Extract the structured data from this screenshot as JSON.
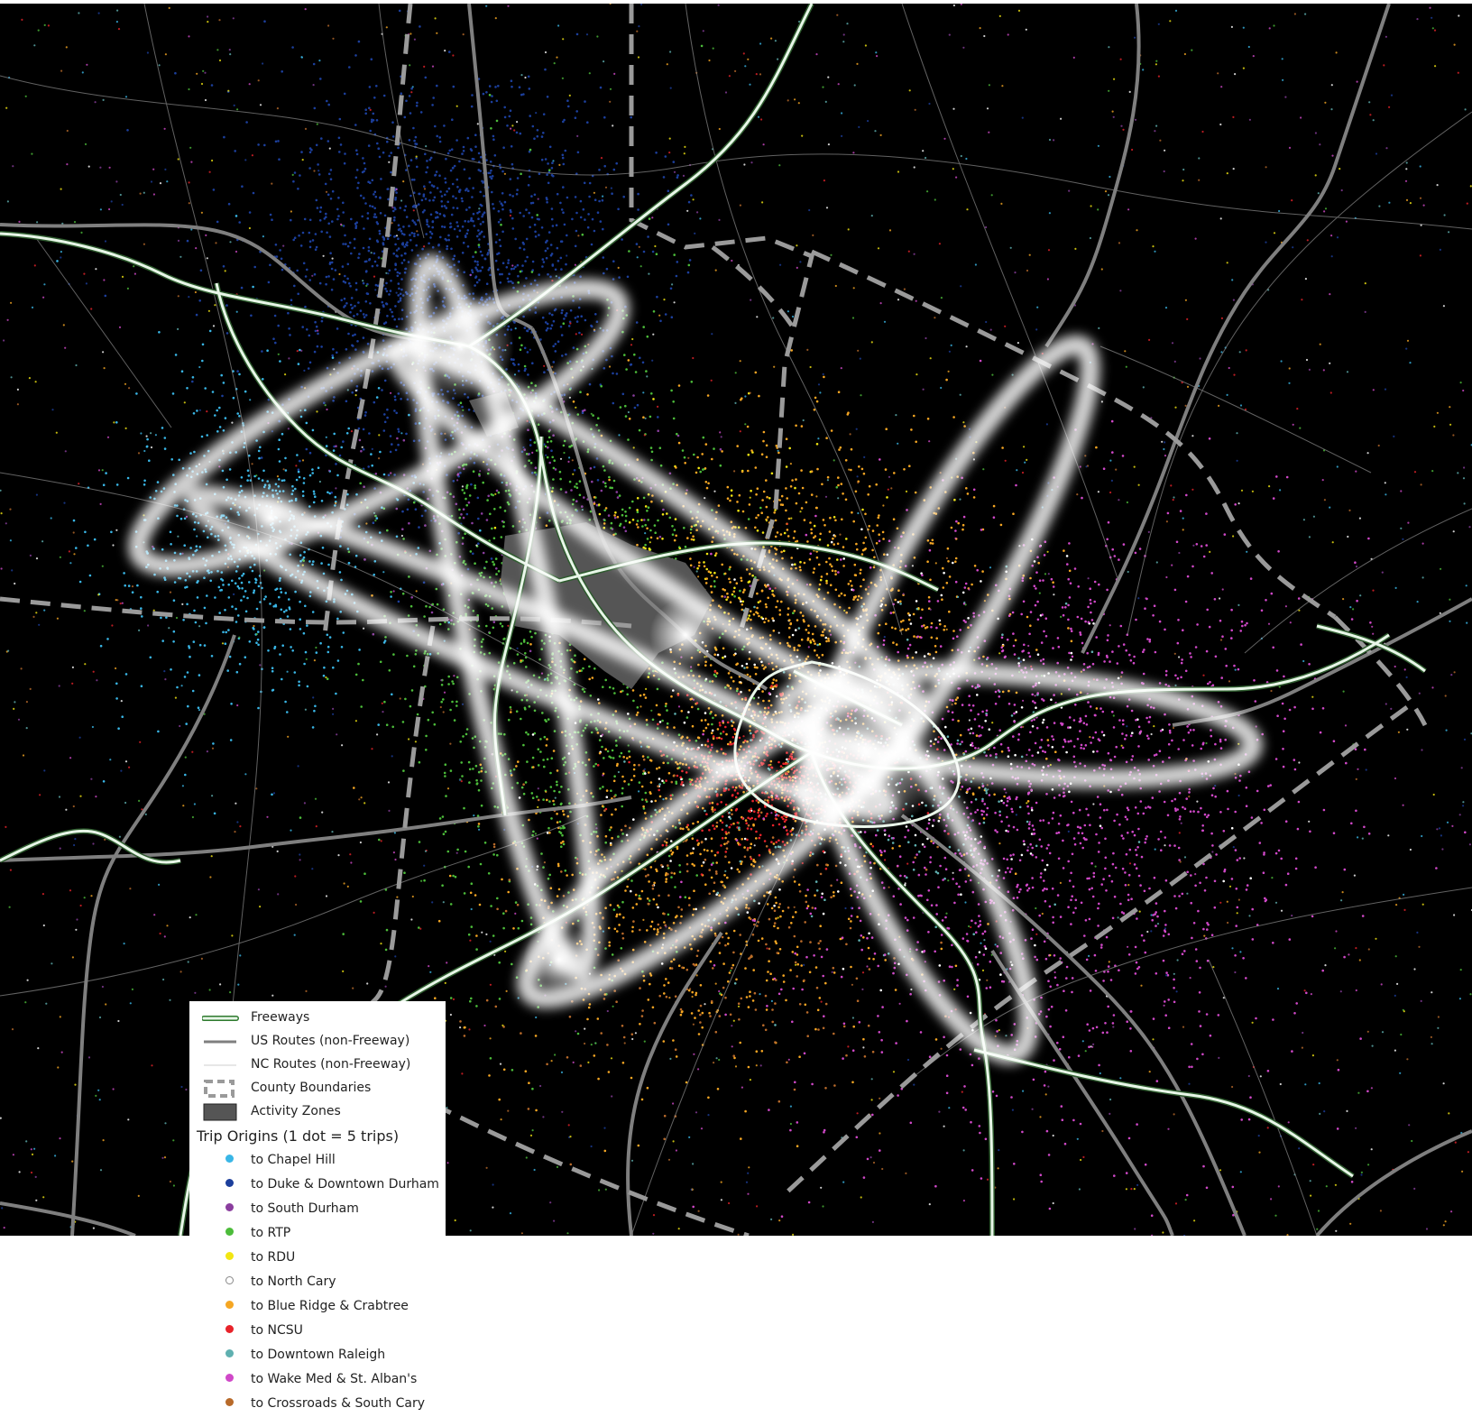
{
  "legend": {
    "line_items": [
      {
        "name": "freeway",
        "label": "Freeways",
        "symbol": "freeway-line-icon",
        "color": "#e8f6e8",
        "outline": "#2d7a2d"
      },
      {
        "name": "us-route",
        "label": "US Routes (non-Freeway)",
        "symbol": "gray-line-icon",
        "color": "#7f7f7f"
      },
      {
        "name": "nc-route",
        "label": "NC Routes (non-Freeway)",
        "symbol": "thin-line-icon",
        "color": "#cfcfcf"
      },
      {
        "name": "county-boundary",
        "label": "County Boundaries",
        "symbol": "dashed-box-icon",
        "color": "#9a9a9a"
      },
      {
        "name": "activity-zone",
        "label": "Activity Zones",
        "symbol": "filled-box-icon",
        "color": "#555555"
      }
    ],
    "origins_title": "Trip Origins (1 dot = 5 trips)",
    "origins": [
      {
        "label": "to Chapel Hill",
        "color": "#39b6e6"
      },
      {
        "label": "to Duke & Downtown Durham",
        "color": "#1c3f9c"
      },
      {
        "label": "to South Durham",
        "color": "#8a3e9e"
      },
      {
        "label": "to RTP",
        "color": "#4cbc3a"
      },
      {
        "label": "to RDU",
        "color": "#f2e612"
      },
      {
        "label": "to North Cary",
        "color": "#ffffff",
        "outline": "#888888"
      },
      {
        "label": "to Blue Ridge & Crabtree",
        "color": "#f5a623"
      },
      {
        "label": "to NCSU",
        "color": "#e8232a"
      },
      {
        "label": "to Downtown Raleigh",
        "color": "#5fb0b0"
      },
      {
        "label": "to Wake Med & St. Alban's",
        "color": "#d048c8"
      },
      {
        "label": "to Crossroads & South Cary",
        "color": "#b86a2a"
      }
    ]
  }
}
